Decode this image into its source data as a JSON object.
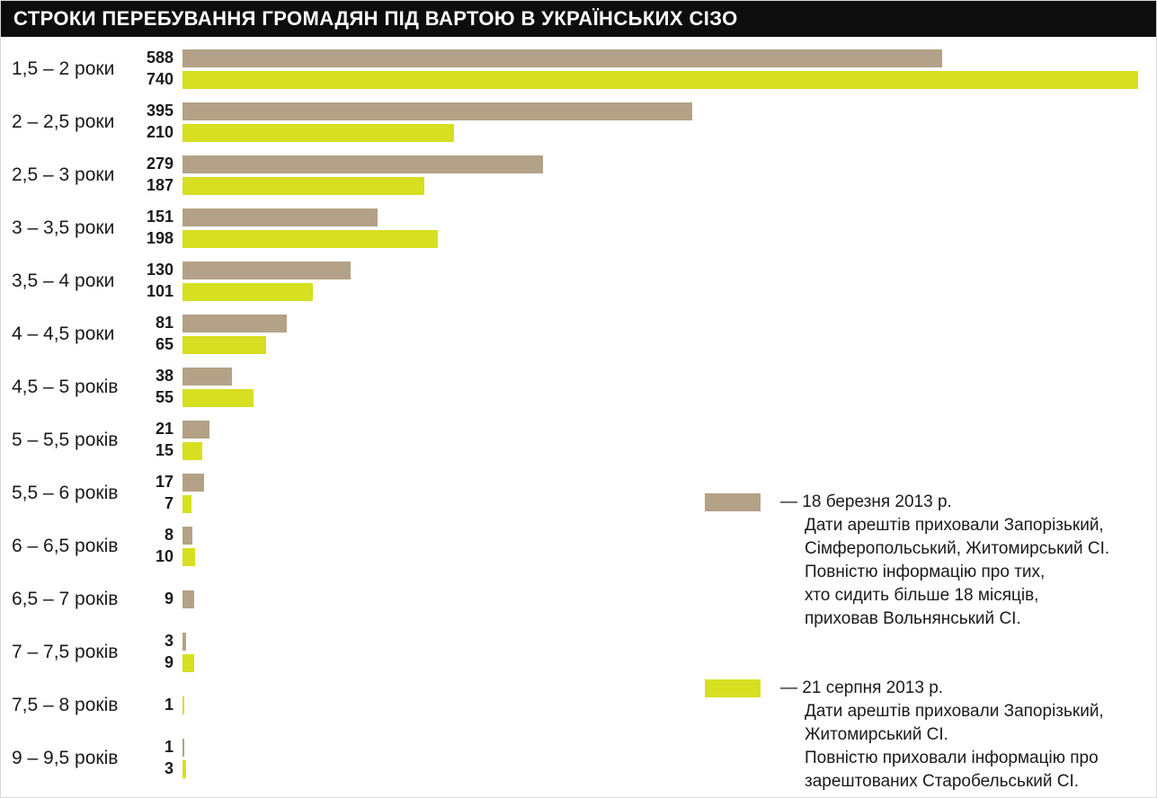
{
  "title": "СТРОКИ ПЕРЕБУВАННЯ ГРОМАДЯН ПІД ВАРТОЮ В УКРАЇНСЬКИХ СІЗО",
  "colors": {
    "series_march": "#b3a287",
    "series_august": "#d7df21",
    "title_bg": "#0d0d0d",
    "title_text": "#ffffff"
  },
  "chart_data": {
    "type": "bar",
    "orientation": "horizontal",
    "title": "СТРОКИ ПЕРЕБУВАННЯ ГРОМАДЯН ПІД ВАРТОЮ В УКРАЇНСЬКИХ СІЗО",
    "xlim": [
      0,
      740
    ],
    "grid": false,
    "value_labels": true,
    "legend_position": "right-middle",
    "categories": [
      "1,5 – 2 роки",
      "2 – 2,5 роки",
      "2,5 – 3 роки",
      "3 – 3,5 роки",
      "3,5 – 4 роки",
      "4 – 4,5 роки",
      "4,5 – 5 років",
      "5 – 5,5 років",
      "5,5 – 6 років",
      "6 – 6,5 років",
      "6,5 – 7 років",
      "7 – 7,5 років",
      "7,5 – 8 років",
      "9 – 9,5 років"
    ],
    "series": [
      {
        "name": "18 березня 2013 р.",
        "color": "#b3a287",
        "values": [
          588,
          395,
          279,
          151,
          130,
          81,
          38,
          21,
          17,
          8,
          9,
          3,
          null,
          1
        ]
      },
      {
        "name": "21 серпня 2013 р.",
        "color": "#d7df21",
        "values": [
          740,
          210,
          187,
          198,
          101,
          65,
          55,
          15,
          7,
          10,
          null,
          9,
          1,
          3
        ]
      }
    ]
  },
  "legend": [
    {
      "swatch_color": "#b3a287",
      "date_line": "— 18 березня 2013 р.",
      "note_lines": [
        "Дати арештів приховали Запорізький,",
        "Сімферопольський, Житомирський СІ.",
        "Повністю інформацію про тих,",
        "хто сидить більше 18 місяців,",
        "приховав Вольнянський СІ."
      ]
    },
    {
      "swatch_color": "#d7df21",
      "date_line": "— 21 серпня 2013 р.",
      "note_lines": [
        "Дати арештів приховали Запорізький,",
        "Житомирський СІ.",
        "Повністю приховали інформацію про",
        "зарештованих Старобельський СІ."
      ]
    }
  ]
}
